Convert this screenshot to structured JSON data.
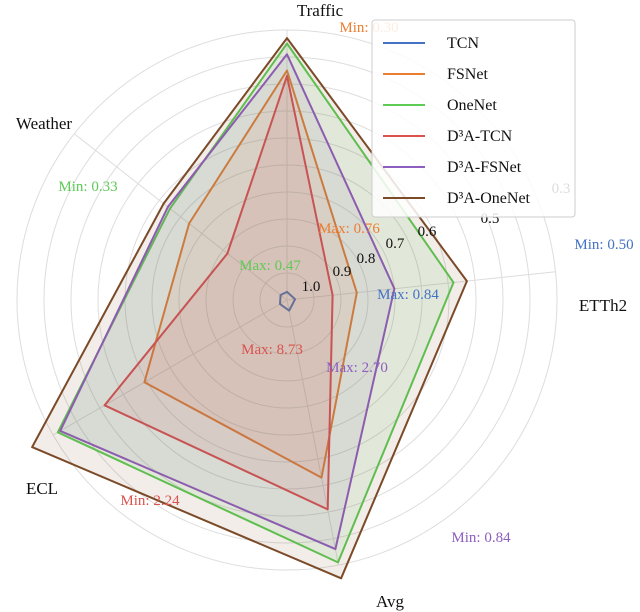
{
  "chart_data": {
    "type": "radar",
    "axes": [
      {
        "key": "traffic",
        "label": "Traffic"
      },
      {
        "key": "etth2",
        "label": "ETTh2"
      },
      {
        "key": "avg",
        "label": "Avg"
      },
      {
        "key": "ecl",
        "label": "ECL"
      },
      {
        "key": "weather",
        "label": "Weather"
      }
    ],
    "ring_labels": [
      "1.0",
      "0.9",
      "0.8",
      "0.7",
      "0.6",
      "0.5",
      "0.3"
    ],
    "grid": true,
    "legend_position": "top-right",
    "series": [
      {
        "name": "TCN",
        "color": "#4472c4",
        "fill": false,
        "values": [
          0.03,
          0.03,
          0.04,
          0.03,
          0.03
        ]
      },
      {
        "name": "FSNet",
        "color": "#ed7d31",
        "fill": true,
        "values": [
          0.85,
          0.26,
          0.67,
          0.61,
          0.46
        ]
      },
      {
        "name": "OneNet",
        "color": "#5dcb55",
        "fill": true,
        "values": [
          0.95,
          0.62,
          0.99,
          0.98,
          0.55
        ]
      },
      {
        "name": "D³A-TCN",
        "color": "#d9534f",
        "fill": true,
        "values": [
          0.83,
          0.17,
          0.79,
          0.78,
          0.28
        ]
      },
      {
        "name": "D³A-FSNet",
        "color": "#8e5fbf",
        "fill": true,
        "values": [
          0.91,
          0.4,
          0.94,
          0.97,
          0.56
        ]
      },
      {
        "name": "D³A-OneNet",
        "color": "#7b4a28",
        "fill": true,
        "values": [
          0.97,
          0.67,
          1.05,
          1.09,
          0.58
        ]
      }
    ],
    "annotations": [
      {
        "text": "Min: 0.30",
        "color": "#ed7d31"
      },
      {
        "text": "Max: 0.76",
        "color": "#ed7d31"
      },
      {
        "text": "Min: 0.50",
        "color": "#4472c4"
      },
      {
        "text": "Max: 0.84",
        "color": "#4472c4"
      },
      {
        "text": "Min: 0.33",
        "color": "#5dcb55"
      },
      {
        "text": "Max: 0.47",
        "color": "#5dcb55"
      },
      {
        "text": "Max: 8.73",
        "color": "#d9534f"
      },
      {
        "text": "Max: 2.70",
        "color": "#8e5fbf"
      },
      {
        "text": "Min: 2.24",
        "color": "#d9534f"
      },
      {
        "text": "Min: 0.84",
        "color": "#8e5fbf"
      }
    ]
  }
}
